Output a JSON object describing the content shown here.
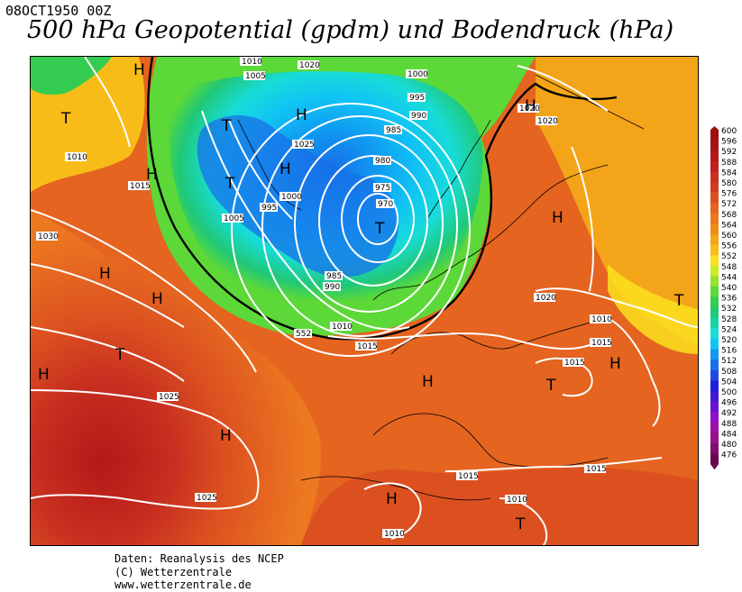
{
  "header": {
    "datestamp": "08OCT1950 00Z",
    "title": "500 hPa Geopotential (gpdm) und Bodendruck (hPa)"
  },
  "credits": {
    "line1": "Daten: Reanalysis des NCEP",
    "line2": "(C) Wetterzentrale",
    "line3": "www.wetterzentrale.de"
  },
  "colors": {
    "contour_line": "#ffffff",
    "label_box": "#ffffff",
    "line_552": "#000000"
  },
  "legend": {
    "levels": [
      {
        "label": "600",
        "color": "#9c1010"
      },
      {
        "label": "596",
        "color": "#a81414"
      },
      {
        "label": "592",
        "color": "#b41818"
      },
      {
        "label": "588",
        "color": "#c02020"
      },
      {
        "label": "584",
        "color": "#c83020"
      },
      {
        "label": "580",
        "color": "#d03c20"
      },
      {
        "label": "576",
        "color": "#dc5020"
      },
      {
        "label": "572",
        "color": "#e46420"
      },
      {
        "label": "568",
        "color": "#ec7820"
      },
      {
        "label": "564",
        "color": "#f08c18"
      },
      {
        "label": "560",
        "color": "#f4a418"
      },
      {
        "label": "556",
        "color": "#f8bc18"
      },
      {
        "label": "552",
        "color": "#fce020"
      },
      {
        "label": "548",
        "color": "#ccec28"
      },
      {
        "label": "544",
        "color": "#98e030"
      },
      {
        "label": "540",
        "color": "#5cd838"
      },
      {
        "label": "536",
        "color": "#34cc50"
      },
      {
        "label": "532",
        "color": "#20c878"
      },
      {
        "label": "528",
        "color": "#18d4a8"
      },
      {
        "label": "524",
        "color": "#18dcd8"
      },
      {
        "label": "520",
        "color": "#10c4f4"
      },
      {
        "label": "516",
        "color": "#1098f0"
      },
      {
        "label": "512",
        "color": "#1870e8"
      },
      {
        "label": "508",
        "color": "#2048e0"
      },
      {
        "label": "504",
        "color": "#2020e0"
      },
      {
        "label": "500",
        "color": "#4018d8"
      },
      {
        "label": "496",
        "color": "#6c10d0"
      },
      {
        "label": "492",
        "color": "#9010c8"
      },
      {
        "label": "488",
        "color": "#a010a8"
      },
      {
        "label": "484",
        "color": "#981088"
      },
      {
        "label": "480",
        "color": "#800c6c"
      },
      {
        "label": "476",
        "color": "#680850"
      }
    ]
  },
  "map": {
    "contour_label_552": "552",
    "pressure_labels": [
      "1010",
      "1005",
      "1020",
      "1000",
      "995",
      "990",
      "985",
      "980",
      "975",
      "970",
      "1025",
      "1015",
      "1030",
      "1010",
      "1015",
      "1010",
      "1015",
      "1025",
      "1025",
      "1015",
      "1015",
      "1010",
      "1010",
      "1020",
      "1020",
      "1020",
      "1015",
      "1010",
      "1005",
      "1000",
      "995",
      "990",
      "985"
    ],
    "centers": [
      "H",
      "T",
      "H",
      "H",
      "H",
      "T",
      "H",
      "T",
      "H",
      "T",
      "T",
      "H",
      "H",
      "H",
      "T",
      "H",
      "T",
      "H",
      "H",
      "T",
      "H",
      "H"
    ]
  }
}
